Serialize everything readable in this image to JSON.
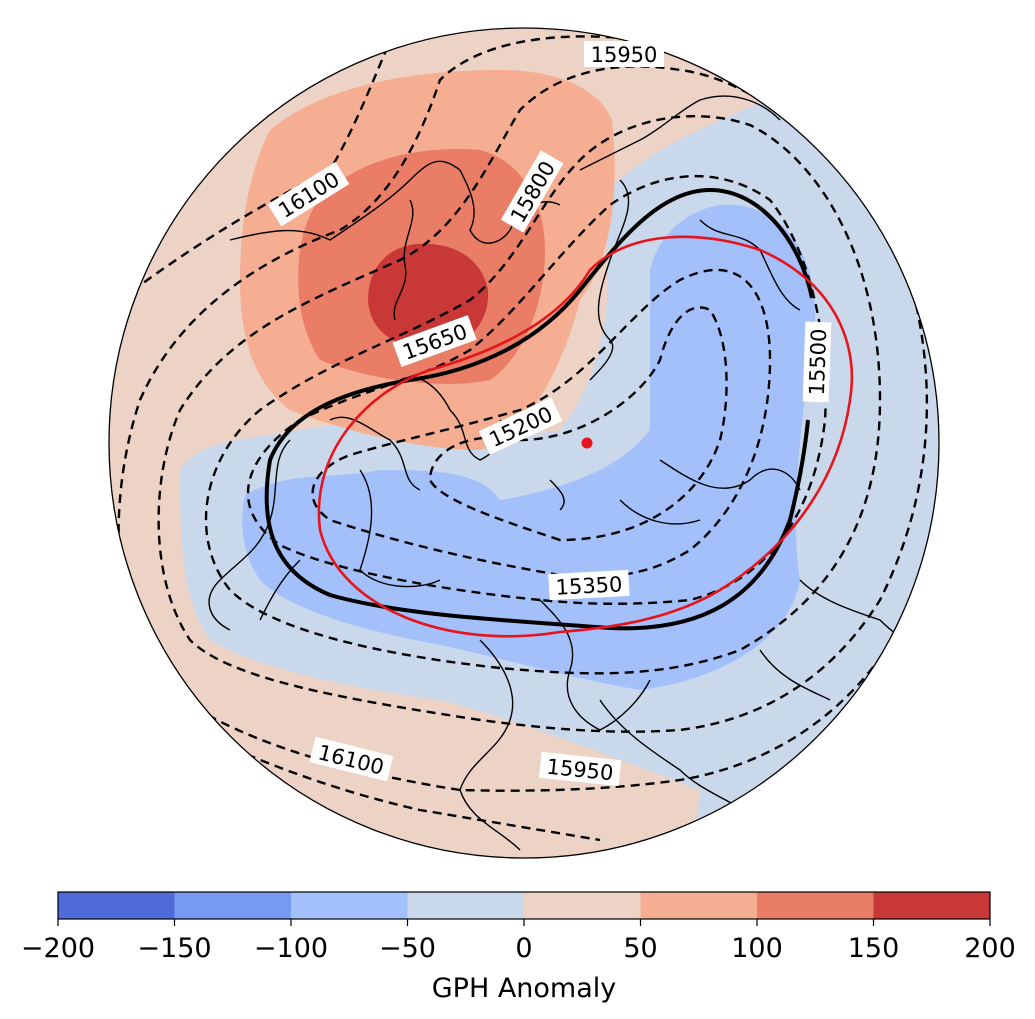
{
  "map": {
    "projection": "north-polar-stereographic",
    "fill_field": "GPH Anomaly",
    "contour_style": "dashed black",
    "highlight_contour_value": "15500",
    "highlight_contour_style": "thick solid black",
    "ellipse_color": "#e8141c",
    "center_marker_color": "#e8141c",
    "contour_labels": [
      "15950",
      "16100",
      "15800",
      "15650",
      "15200",
      "15500",
      "15350",
      "16100",
      "15950"
    ]
  },
  "colorbar": {
    "label": "GPH Anomaly",
    "ticks": [
      "−200",
      "−150",
      "−100",
      "−50",
      "0",
      "50",
      "100",
      "150",
      "200"
    ],
    "bins": [
      {
        "range": [
          -200,
          -150
        ],
        "color": "#4f6bd9"
      },
      {
        "range": [
          -150,
          -100
        ],
        "color": "#7799f0"
      },
      {
        "range": [
          -100,
          -50
        ],
        "color": "#a3c0fb"
      },
      {
        "range": [
          -50,
          0
        ],
        "color": "#cad8eb"
      },
      {
        "range": [
          0,
          50
        ],
        "color": "#edd2c6"
      },
      {
        "range": [
          50,
          100
        ],
        "color": "#f5ae92"
      },
      {
        "range": [
          100,
          150
        ],
        "color": "#e97d65"
      },
      {
        "range": [
          150,
          200
        ],
        "color": "#c83836"
      }
    ]
  }
}
